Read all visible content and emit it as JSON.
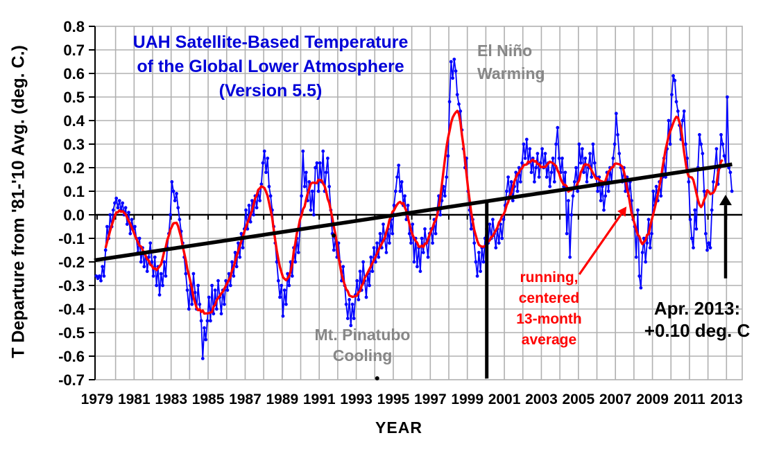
{
  "title": {
    "line1": "UAH Satellite-Based Temperature",
    "line2": "of the Global Lower Atmosphere",
    "line3": "(Version 5.5)"
  },
  "axes": {
    "y_label": "T Departure from '81-'10 Avg. (deg. C.)",
    "x_label": "YEAR",
    "y_tick_labels": [
      "0.8",
      "0.7",
      "0.6",
      "0.5",
      "0.4",
      "0.3",
      "0.2",
      "0.1",
      "0.0",
      "-0.1",
      "-0.2",
      "-0.3",
      "-0.4",
      "-0.5",
      "-0.6",
      "-0.7"
    ],
    "x_tick_years": [
      1979,
      1981,
      1983,
      1985,
      1987,
      1989,
      1991,
      1993,
      1995,
      1997,
      1999,
      2001,
      2003,
      2005,
      2007,
      2009,
      2011,
      2013
    ]
  },
  "annotations": {
    "el_nino": [
      "El Niño",
      "Warming"
    ],
    "pinatubo": [
      "Mt. Pinatubo",
      "Cooling"
    ],
    "running_avg": [
      "running,",
      "centered",
      "13-month",
      "average"
    ],
    "last_point": [
      "Apr. 2013:",
      "+0.10 deg. C"
    ]
  },
  "colors": {
    "monthly": "#0000ff",
    "average": "#ff0000",
    "trend": "#000000",
    "title": "#0000d8",
    "gray_label": "#878787",
    "grid": "#b0b0b0",
    "axis": "#000000"
  },
  "chart_data": {
    "type": "line",
    "title": "UAH Satellite-Based Temperature of the Global Lower Atmosphere (Version 5.5)",
    "xlabel": "YEAR",
    "ylabel": "T Departure from '81-'10 Avg. (deg. C.)",
    "xlim": [
      1978.89,
      2013.85
    ],
    "ylim": [
      -0.7,
      0.8
    ],
    "grid": true,
    "baseline_period": "1981-2010",
    "last_point": {
      "label": "Apr. 2013",
      "value": 0.1
    },
    "series": [
      {
        "name": "monthly temperature anomaly",
        "color": "#0000ff",
        "start": "1978-12",
        "values_by_year": {
          "1978": [
            -0.26
          ],
          "1979": [
            -0.27,
            -0.26,
            -0.28,
            -0.22,
            -0.26,
            -0.15,
            -0.05,
            -0.1,
            0.0,
            -0.05,
            0.02,
            0.05
          ],
          "1980": [
            0.07,
            0.03,
            0.06,
            0.02,
            0.05,
            0.0,
            0.03,
            -0.04,
            0.01,
            -0.08,
            -0.02,
            -0.06
          ],
          "1981": [
            -0.05,
            -0.1,
            -0.16,
            -0.1,
            -0.2,
            -0.14,
            -0.22,
            -0.16,
            -0.24,
            -0.18,
            -0.12,
            -0.2
          ],
          "1982": [
            -0.26,
            -0.18,
            -0.3,
            -0.22,
            -0.34,
            -0.25,
            -0.3,
            -0.2,
            -0.26,
            -0.14,
            -0.08,
            0.0
          ],
          "1983": [
            0.14,
            0.1,
            0.06,
            0.09,
            0.03,
            -0.02,
            -0.07,
            -0.12,
            -0.18,
            -0.25,
            -0.32,
            -0.4
          ],
          "1984": [
            -0.3,
            -0.38,
            -0.25,
            -0.33,
            -0.4,
            -0.3,
            -0.38,
            -0.45,
            -0.61,
            -0.48,
            -0.53,
            -0.45
          ],
          "1985": [
            -0.35,
            -0.45,
            -0.3,
            -0.42,
            -0.32,
            -0.4,
            -0.28,
            -0.35,
            -0.42,
            -0.32,
            -0.38,
            -0.28
          ],
          "1986": [
            -0.32,
            -0.25,
            -0.3,
            -0.2,
            -0.26,
            -0.16,
            -0.22,
            -0.12,
            -0.18,
            -0.08,
            -0.14,
            -0.06
          ],
          "1987": [
            0.02,
            -0.06,
            0.04,
            -0.03,
            0.06,
            0.0,
            0.08,
            0.03,
            0.1,
            0.06,
            0.13,
            0.22
          ],
          "1988": [
            0.27,
            0.18,
            0.24,
            0.12,
            0.08,
            0.02,
            -0.05,
            -0.12,
            -0.2,
            -0.28,
            -0.35,
            -0.3
          ],
          "1989": [
            -0.43,
            -0.32,
            -0.38,
            -0.25,
            -0.3,
            -0.2,
            -0.26,
            -0.14,
            -0.2,
            -0.1,
            -0.16,
            -0.06
          ],
          "1990": [
            0.08,
            0.27,
            0.12,
            0.18,
            0.06,
            0.14,
            0.02,
            0.1,
            0.0,
            0.2,
            0.22,
            0.1
          ],
          "1991": [
            0.22,
            0.14,
            0.27,
            0.1,
            0.18,
            0.24,
            0.12,
            0.02,
            -0.08,
            -0.15,
            -0.1,
            -0.18
          ],
          "1992": [
            -0.12,
            -0.2,
            -0.28,
            -0.22,
            -0.3,
            -0.38,
            -0.44,
            -0.36,
            -0.47,
            -0.38,
            -0.44,
            -0.34
          ],
          "1993": [
            -0.28,
            -0.36,
            -0.24,
            -0.32,
            -0.2,
            -0.28,
            -0.35,
            -0.25,
            -0.3,
            -0.18,
            -0.24,
            -0.14
          ],
          "1994": [
            -0.2,
            -0.12,
            -0.18,
            -0.08,
            -0.14,
            -0.04,
            -0.1,
            -0.16,
            -0.06,
            -0.12,
            -0.02,
            -0.08
          ],
          "1995": [
            0.04,
            0.1,
            0.16,
            0.21,
            0.1,
            0.14,
            0.04,
            0.08,
            -0.02,
            0.04,
            -0.08,
            -0.12
          ],
          "1996": [
            -0.04,
            -0.2,
            -0.1,
            -0.22,
            -0.14,
            -0.24,
            -0.1,
            -0.16,
            -0.06,
            -0.12,
            -0.18,
            -0.08
          ],
          "1997": [
            -0.06,
            -0.12,
            -0.02,
            -0.08,
            0.02,
            0.08,
            0.0,
            0.06,
            0.12,
            0.08,
            0.16,
            0.25
          ],
          "1998": [
            0.48,
            0.65,
            0.58,
            0.66,
            0.61,
            0.51,
            0.47,
            0.44,
            0.36,
            0.28,
            0.2,
            0.24
          ],
          "1999": [
            0.1,
            0.02,
            -0.06,
            -0.02,
            -0.12,
            -0.2,
            -0.26,
            -0.16,
            -0.24,
            -0.14,
            -0.2,
            -0.1
          ],
          "2000": [
            -0.06,
            -0.12,
            -0.04,
            -0.1,
            -0.02,
            -0.08,
            -0.14,
            -0.06,
            -0.12,
            -0.04,
            -0.1,
            -0.02
          ],
          "2001": [
            0.04,
            0.1,
            0.16,
            0.08,
            0.14,
            0.06,
            0.12,
            0.18,
            0.1,
            0.2,
            0.14,
            0.22
          ],
          "2002": [
            0.3,
            0.24,
            0.32,
            0.22,
            0.28,
            0.18,
            0.24,
            0.14,
            0.2,
            0.26,
            0.16,
            0.22
          ],
          "2003": [
            0.28,
            0.2,
            0.26,
            0.16,
            0.22,
            0.12,
            0.18,
            0.24,
            0.14,
            0.3,
            0.37,
            0.24
          ],
          "2004": [
            0.18,
            0.24,
            0.12,
            0.18,
            -0.08,
            0.06,
            -0.18,
            0.0,
            0.08,
            0.14,
            0.2,
            0.1
          ],
          "2005": [
            0.3,
            0.22,
            0.28,
            0.18,
            0.24,
            0.14,
            0.2,
            0.26,
            0.16,
            0.3,
            0.22,
            0.16
          ],
          "2006": [
            0.1,
            0.16,
            0.06,
            0.12,
            0.02,
            0.08,
            0.18,
            0.1,
            0.2,
            0.14,
            0.24,
            0.3
          ],
          "2007": [
            0.43,
            0.34,
            0.26,
            0.2,
            0.14,
            0.2,
            0.1,
            0.16,
            0.08,
            0.14,
            0.06,
            -0.02
          ],
          "2008": [
            -0.05,
            -0.18,
            0.02,
            -0.26,
            -0.31,
            -0.16,
            -0.1,
            -0.2,
            -0.12,
            -0.02,
            -0.14,
            -0.08
          ],
          "2009": [
            0.1,
            0.04,
            0.12,
            0.06,
            0.14,
            0.08,
            0.16,
            0.24,
            0.16,
            0.28,
            0.4,
            0.3
          ],
          "2010": [
            0.51,
            0.59,
            0.57,
            0.48,
            0.44,
            0.38,
            0.32,
            0.4,
            0.44,
            0.3,
            0.24,
            0.14
          ],
          "2011": [
            -0.02,
            -0.1,
            -0.14,
            0.02,
            -0.06,
            0.2,
            0.34,
            0.3,
            0.26,
            0.1,
            -0.08,
            -0.15
          ],
          "2012": [
            -0.12,
            -0.14,
            0.02,
            0.14,
            0.2,
            0.28,
            0.13,
            0.2,
            0.34,
            0.3,
            0.25,
            0.21
          ],
          "2013": [
            0.5,
            0.2,
            0.18,
            0.1
          ]
        }
      },
      {
        "name": "running, centered 13-month average",
        "color": "#ff0000",
        "derived": "13-month centered running mean of the monthly series"
      },
      {
        "name": "linear trend",
        "color": "#000000",
        "points": [
          [
            1978.95,
            -0.192
          ],
          [
            2013.2,
            0.213
          ]
        ]
      }
    ],
    "markers": {
      "dropline": {
        "year": 2000.05,
        "v_top": 0.0575,
        "v_bottom": -0.695
      },
      "black_arrow": {
        "year": 2012.95,
        "v_tail": -0.27,
        "v_head": 0.085
      },
      "red_arrow": {
        "from": [
          2005.05,
          -0.253
        ],
        "to": [
          2007.6,
          0.035
        ]
      },
      "stray_dots": [
        [
          1991.78,
          -0.088
        ],
        [
          1994.13,
          -0.694
        ]
      ]
    }
  }
}
